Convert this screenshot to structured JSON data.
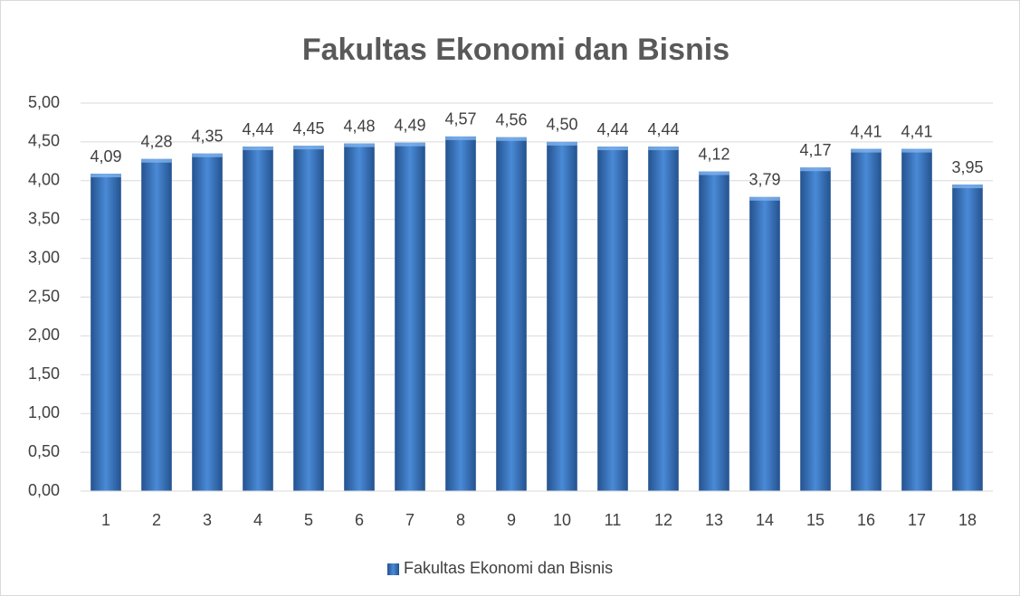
{
  "chart_data": {
    "type": "bar",
    "title": "Fakultas Ekonomi dan Bisnis",
    "categories": [
      "1",
      "2",
      "3",
      "4",
      "5",
      "6",
      "7",
      "8",
      "9",
      "10",
      "11",
      "12",
      "13",
      "14",
      "15",
      "16",
      "17",
      "18"
    ],
    "series": [
      {
        "name": "Fakultas Ekonomi dan Bisnis",
        "color": "#3a72bd",
        "values": [
          4.09,
          4.28,
          4.35,
          4.44,
          4.45,
          4.48,
          4.49,
          4.57,
          4.56,
          4.5,
          4.44,
          4.44,
          4.12,
          3.79,
          4.17,
          4.41,
          4.41,
          3.95
        ],
        "value_labels": [
          "4,09",
          "4,28",
          "4,35",
          "4,44",
          "4,45",
          "4,48",
          "4,49",
          "4,57",
          "4,56",
          "4,50",
          "4,44",
          "4,44",
          "4,12",
          "3,79",
          "4,17",
          "4,41",
          "4,41",
          "3,95"
        ]
      }
    ],
    "ylim": [
      0,
      5
    ],
    "yticks": [
      {
        "value": 0,
        "label": "0,00"
      },
      {
        "value": 0.5,
        "label": "0,50"
      },
      {
        "value": 1,
        "label": "1,00"
      },
      {
        "value": 1.5,
        "label": "1,50"
      },
      {
        "value": 2,
        "label": "2,00"
      },
      {
        "value": 2.5,
        "label": "2,50"
      },
      {
        "value": 3,
        "label": "3,00"
      },
      {
        "value": 3.5,
        "label": "3,50"
      },
      {
        "value": 4,
        "label": "4,00"
      },
      {
        "value": 4.5,
        "label": "4,50"
      },
      {
        "value": 5,
        "label": "5,00"
      }
    ],
    "grid": true,
    "legend": "bottom"
  }
}
